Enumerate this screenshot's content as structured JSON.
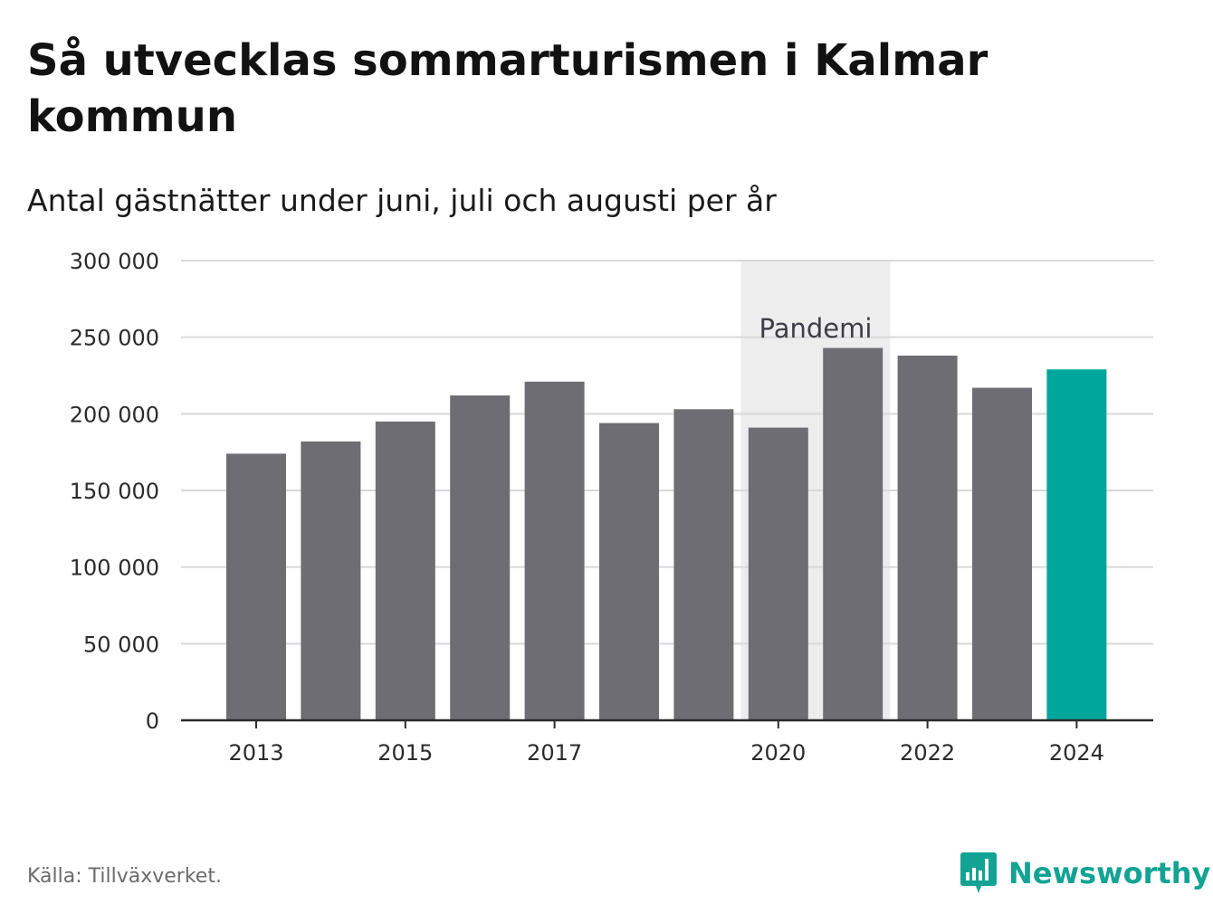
{
  "title": "Så utvecklas sommarturismen i Kalmar kommun",
  "subtitle": "Antal gästnätter under juni, juli och augusti per år",
  "source": "Källa: Tillväxverket.",
  "brand": {
    "name": "Newsworthy",
    "icon": "newsworthy-logo-icon"
  },
  "colors": {
    "bar": "#6e6d73",
    "highlight": "#00a69b",
    "pandemic_band": "#ededee",
    "grid": "#d9d9d9",
    "axis": "#2b2b2b"
  },
  "chart_data": {
    "type": "bar",
    "categories": [
      "2013",
      "2014",
      "2015",
      "2016",
      "2017",
      "2018",
      "2019",
      "2020",
      "2021",
      "2022",
      "2023",
      "2024"
    ],
    "values": [
      174000,
      182000,
      195000,
      212000,
      221000,
      194000,
      203000,
      191000,
      243000,
      238000,
      217000,
      229000
    ],
    "highlight_category": "2024",
    "xticks": [
      "2013",
      "2015",
      "2017",
      "2020",
      "2022",
      "2024"
    ],
    "yticks": [
      0,
      50000,
      100000,
      150000,
      200000,
      250000,
      300000
    ],
    "ytick_labels": [
      "0",
      "50 000",
      "100 000",
      "150 000",
      "200 000",
      "250 000",
      "300 000"
    ],
    "ylim": [
      0,
      300000
    ],
    "grid": true,
    "annotation": {
      "label": "Pandemi",
      "from": "2020",
      "to": "2021"
    }
  }
}
